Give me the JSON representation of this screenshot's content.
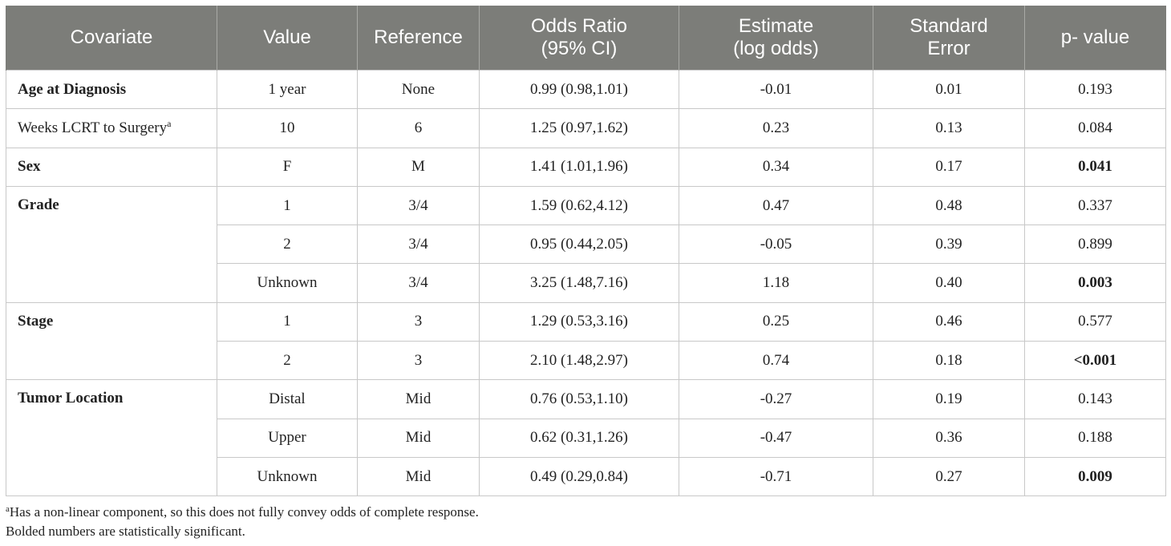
{
  "table": {
    "headers": [
      [
        "Covariate"
      ],
      [
        "Value"
      ],
      [
        "Reference"
      ],
      [
        "Odds Ratio",
        "(95% CI)"
      ],
      [
        "Estimate",
        "(log odds)"
      ],
      [
        "Standard",
        "Error"
      ],
      [
        "p- value"
      ]
    ],
    "rows": [
      {
        "covariate": "Age at Diagnosis",
        "sup": "",
        "value": "1 year",
        "reference": "None",
        "odds_ratio": "0.99 (0.98,1.01)",
        "estimate": "-0.01",
        "se": "0.01",
        "p": "0.193",
        "sig": false
      },
      {
        "covariate": "Weeks LCRT to Surgery",
        "sup": "a",
        "value": "10",
        "reference": "6",
        "odds_ratio": "1.25 (0.97,1.62)",
        "estimate": "0.23",
        "se": "0.13",
        "p": "0.084",
        "sig": false
      },
      {
        "covariate": "Sex",
        "sup": "",
        "value": "F",
        "reference": "M",
        "odds_ratio": "1.41 (1.01,1.96)",
        "estimate": "0.34",
        "se": "0.17",
        "p": "0.041",
        "sig": true
      },
      {
        "covariate": "Grade",
        "sup": "",
        "value": "1",
        "reference": "3/4",
        "odds_ratio": "1.59 (0.62,4.12)",
        "estimate": "0.47",
        "se": "0.48",
        "p": "0.337",
        "sig": false
      },
      {
        "covariate": "",
        "sup": "",
        "value": "2",
        "reference": "3/4",
        "odds_ratio": "0.95 (0.44,2.05)",
        "estimate": "-0.05",
        "se": "0.39",
        "p": "0.899",
        "sig": false
      },
      {
        "covariate": "",
        "sup": "",
        "value": "Unknown",
        "reference": "3/4",
        "odds_ratio": "3.25 (1.48,7.16)",
        "estimate": "1.18",
        "se": "0.40",
        "p": "0.003",
        "sig": true
      },
      {
        "covariate": "Stage",
        "sup": "",
        "value": "1",
        "reference": "3",
        "odds_ratio": "1.29 (0.53,3.16)",
        "estimate": "0.25",
        "se": "0.46",
        "p": "0.577",
        "sig": false
      },
      {
        "covariate": "",
        "sup": "",
        "value": "2",
        "reference": "3",
        "odds_ratio": "2.10 (1.48,2.97)",
        "estimate": "0.74",
        "se": "0.18",
        "p": "<0.001",
        "sig": true
      },
      {
        "covariate": "Tumor Location",
        "sup": "",
        "value": "Distal",
        "reference": "Mid",
        "odds_ratio": "0.76 (0.53,1.10)",
        "estimate": "-0.27",
        "se": "0.19",
        "p": "0.143",
        "sig": false
      },
      {
        "covariate": "",
        "sup": "",
        "value": "Upper",
        "reference": "Mid",
        "odds_ratio": "0.62 (0.31,1.26)",
        "estimate": "-0.47",
        "se": "0.36",
        "p": "0.188",
        "sig": false
      },
      {
        "covariate": "",
        "sup": "",
        "value": "Unknown",
        "reference": "Mid",
        "odds_ratio": "0.49 (0.29,0.84)",
        "estimate": "-0.71",
        "se": "0.27",
        "p": "0.009",
        "sig": true
      }
    ],
    "groups": [
      {
        "label": "Age at Diagnosis",
        "rowspan": 1,
        "bold": true
      },
      {
        "label": "Weeks LCRT to Surgery",
        "sup": "a",
        "rowspan": 1,
        "bold": false
      },
      {
        "label": "Sex",
        "rowspan": 1,
        "bold": true
      },
      {
        "label": "Grade",
        "rowspan": 3,
        "bold": true
      },
      {
        "label": "Stage",
        "rowspan": 2,
        "bold": true
      },
      {
        "label": "Tumor Location",
        "rowspan": 3,
        "bold": true
      }
    ]
  },
  "footnotes": {
    "a_marker": "a",
    "a_text": "Has a non-linear component, so this does not fully convey odds of complete response.",
    "bold_note": "Bolded numbers are statistically significant."
  }
}
